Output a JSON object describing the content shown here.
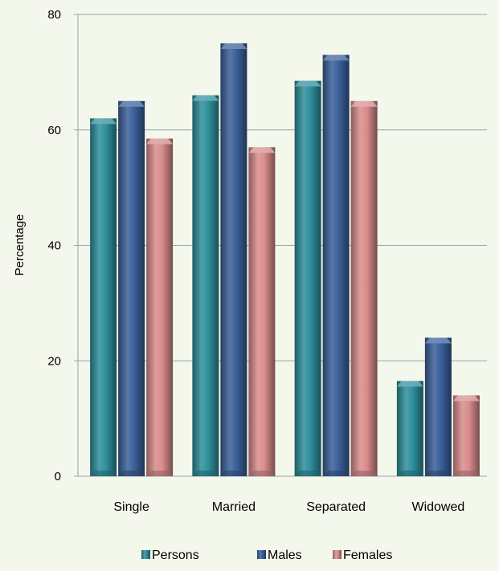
{
  "chart_data": {
    "type": "bar",
    "title": "",
    "xlabel": "",
    "ylabel": "Percentage",
    "ylim": [
      0,
      80
    ],
    "yticks": [
      0,
      20,
      40,
      60,
      80
    ],
    "grid": true,
    "legend_position": "bottom",
    "categories": [
      "Single",
      "Married",
      "Separated",
      "Widowed"
    ],
    "series": [
      {
        "name": "Persons",
        "color": "#2e8f9c",
        "values": [
          62,
          66,
          68.5,
          16.5
        ]
      },
      {
        "name": "Males",
        "color": "#3a609a",
        "values": [
          65,
          75,
          73,
          24
        ]
      },
      {
        "name": "Females",
        "color": "#d98c8c",
        "values": [
          58.5,
          57,
          65,
          14
        ]
      }
    ]
  }
}
